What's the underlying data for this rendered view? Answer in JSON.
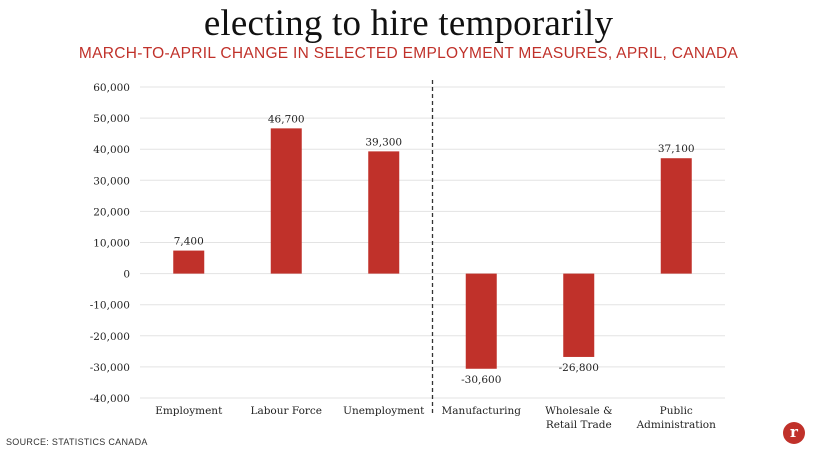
{
  "title": "electing to hire temporarily",
  "subtitle": "MARCH-TO-APRIL CHANGE IN SELECTED EMPLOYMENT MEASURES, APRIL, CANADA",
  "source": "SOURCE: STATISTICS CANADA",
  "logo_letter": "r",
  "colors": {
    "bar": "#c0312a",
    "grid": "#e3e3e3",
    "divider": "#333333"
  },
  "chart_data": {
    "type": "bar",
    "categories": [
      [
        "Employment"
      ],
      [
        "Labour Force"
      ],
      [
        "Unemployment"
      ],
      [
        "Manufacturing"
      ],
      [
        "Wholesale &",
        "Retail Trade"
      ],
      [
        "Public",
        "Administration"
      ]
    ],
    "values": [
      7400,
      46700,
      39300,
      -30600,
      -26800,
      37100
    ],
    "data_labels": [
      "7,400",
      "46,700",
      "39,300",
      "-30,600",
      "-26,800",
      "37,100"
    ],
    "ylim": [
      -40000,
      60000
    ],
    "yticks": [
      60000,
      50000,
      40000,
      30000,
      20000,
      10000,
      0,
      -10000,
      -20000,
      -30000,
      -40000
    ],
    "ytick_labels": [
      "60,000",
      "50,000",
      "40,000",
      "30,000",
      "20,000",
      "10,000",
      "0",
      "-10,000",
      "-20,000",
      "-30,000",
      "-40,000"
    ],
    "grid": true,
    "divider_after_category": 2,
    "xlabel": "",
    "ylabel": ""
  }
}
